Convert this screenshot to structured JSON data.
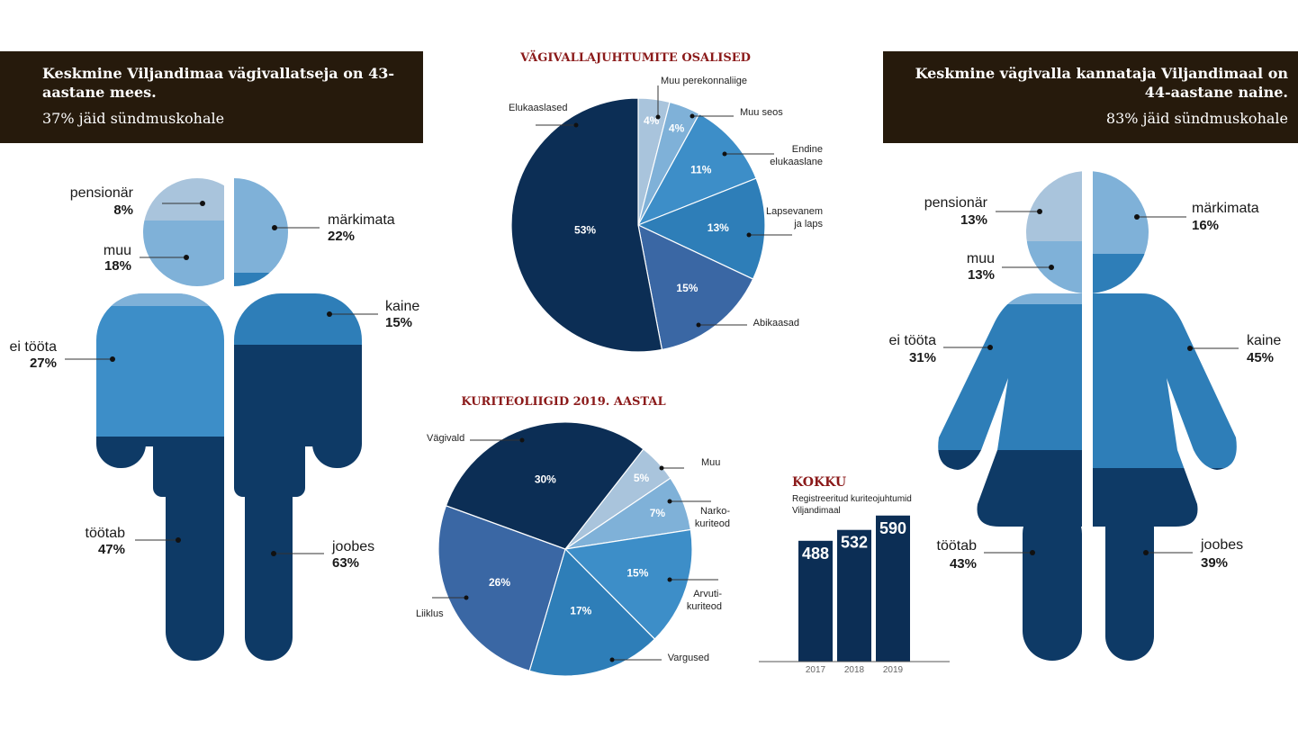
{
  "banners": {
    "left": {
      "headline": "Keskmine Viljandimaa vägivallatseja on 43-aastane mees.",
      "sub": "37% jäid sündmuskohale"
    },
    "right": {
      "headline": "Keskmine vägivalla kannataja Viljandimaal on 44-aastane naine.",
      "sub": "83% jäid sündmuskohale"
    }
  },
  "colors": {
    "lightest": "#a9c4dc",
    "light": "#7fb1d8",
    "mid": "#3d8ec8",
    "blue": "#2e7eb8",
    "darkblue": "#3a67a4",
    "navy": "#0e3a66",
    "darknavy": "#0c2e55",
    "banner": "#261a0c",
    "title_red": "#8b1a1a"
  },
  "chart_data": [
    {
      "type": "pie",
      "id": "male_figure",
      "description_source": "left pictogram",
      "segments": [
        {
          "label": "pensionär",
          "value": 8
        },
        {
          "label": "muu",
          "value": 18
        },
        {
          "label": "ei tööta",
          "value": 27
        },
        {
          "label": "töötab",
          "value": 47
        }
      ],
      "segments_right": [
        {
          "label": "märkimata",
          "value": 22
        },
        {
          "label": "kaine",
          "value": 15
        },
        {
          "label": "joobes",
          "value": 63
        }
      ]
    },
    {
      "type": "pie",
      "id": "osalised",
      "title": "VÄGIVALLAJUHTUMITE OSALISED",
      "slices": [
        {
          "label": "Muu perekonnaliige",
          "value": 4
        },
        {
          "label": "Muu seos",
          "value": 4
        },
        {
          "label": "Endine elukaaslane",
          "value": 11
        },
        {
          "label": "Lapsevanem ja laps",
          "value": 13
        },
        {
          "label": "Abikaasad",
          "value": 15
        },
        {
          "label": "Elukaaslased",
          "value": 53
        }
      ]
    },
    {
      "type": "pie",
      "id": "kuriteoliigid",
      "title": "KURITEOLIIGID 2019. AASTAL",
      "slices": [
        {
          "label": "Muu",
          "value": 5
        },
        {
          "label": "Narko-kuriteod",
          "value": 7
        },
        {
          "label": "Arvuti-kuriteod",
          "value": 15
        },
        {
          "label": "Vargused",
          "value": 17
        },
        {
          "label": "Liiklus",
          "value": 26
        },
        {
          "label": "Vägivald",
          "value": 30
        }
      ]
    },
    {
      "type": "bar",
      "id": "kokku",
      "title": "KOKKU",
      "subtitle": "Registreeritud kuriteojuhtumid Viljandimaal",
      "categories": [
        "2017",
        "2018",
        "2019"
      ],
      "values": [
        488,
        532,
        590
      ]
    },
    {
      "type": "pie",
      "id": "female_figure",
      "description_source": "right pictogram",
      "segments": [
        {
          "label": "pensionär",
          "value": 13
        },
        {
          "label": "muu",
          "value": 13
        },
        {
          "label": "ei tööta",
          "value": 31
        },
        {
          "label": "töötab",
          "value": 43
        }
      ],
      "segments_right": [
        {
          "label": "märkimata",
          "value": 16
        },
        {
          "label": "kaine",
          "value": 45
        },
        {
          "label": "joobes",
          "value": 39
        }
      ]
    }
  ],
  "labels": {
    "male": {
      "pensionar": {
        "name": "pensionär",
        "pct": "8%"
      },
      "muu": {
        "name": "muu",
        "pct": "18%"
      },
      "ei_toota": {
        "name": "ei tööta",
        "pct": "27%"
      },
      "tootab": {
        "name": "töötab",
        "pct": "47%"
      },
      "markimata": {
        "name": "märkimata",
        "pct": "22%"
      },
      "kaine": {
        "name": "kaine",
        "pct": "15%"
      },
      "joobes": {
        "name": "joobes",
        "pct": "63%"
      }
    },
    "female": {
      "pensionar": {
        "name": "pensionär",
        "pct": "13%"
      },
      "muu": {
        "name": "muu",
        "pct": "13%"
      },
      "ei_toota": {
        "name": "ei tööta",
        "pct": "31%"
      },
      "tootab": {
        "name": "töötab",
        "pct": "43%"
      },
      "markimata": {
        "name": "märkimata",
        "pct": "16%"
      },
      "kaine": {
        "name": "kaine",
        "pct": "45%"
      },
      "joobes": {
        "name": "joobes",
        "pct": "39%"
      }
    },
    "osalised_pct": [
      "4%",
      "4%",
      "11%",
      "13%",
      "15%",
      "53%"
    ],
    "osalised_names": {
      "muu_perekonnaliige": "Muu perekonnaliige",
      "muu_seos": "Muu seos",
      "endine_1": "Endine",
      "endine_2": "elukaaslane",
      "lapsevanem_1": "Lapsevanem",
      "lapsevanem_2": "ja laps",
      "abikaasad": "Abikaasad",
      "elukaaslased": "Elukaaslased"
    },
    "kuriteo_pct": [
      "5%",
      "7%",
      "15%",
      "17%",
      "26%",
      "30%"
    ],
    "kuriteo_names": {
      "muu": "Muu",
      "narko_1": "Narko-",
      "narko_2": "kuriteod",
      "arvuti_1": "Arvuti-",
      "arvuti_2": "kuriteod",
      "vargused": "Vargused",
      "liiklus": "Liiklus",
      "vagivald": "Vägivald"
    },
    "kokku_sub_1": "Registreeritud kuriteojuhtumid",
    "kokku_sub_2": "Viljandimaal",
    "bar_values": [
      "488",
      "532",
      "590"
    ],
    "bar_years": [
      "2017",
      "2018",
      "2019"
    ]
  }
}
